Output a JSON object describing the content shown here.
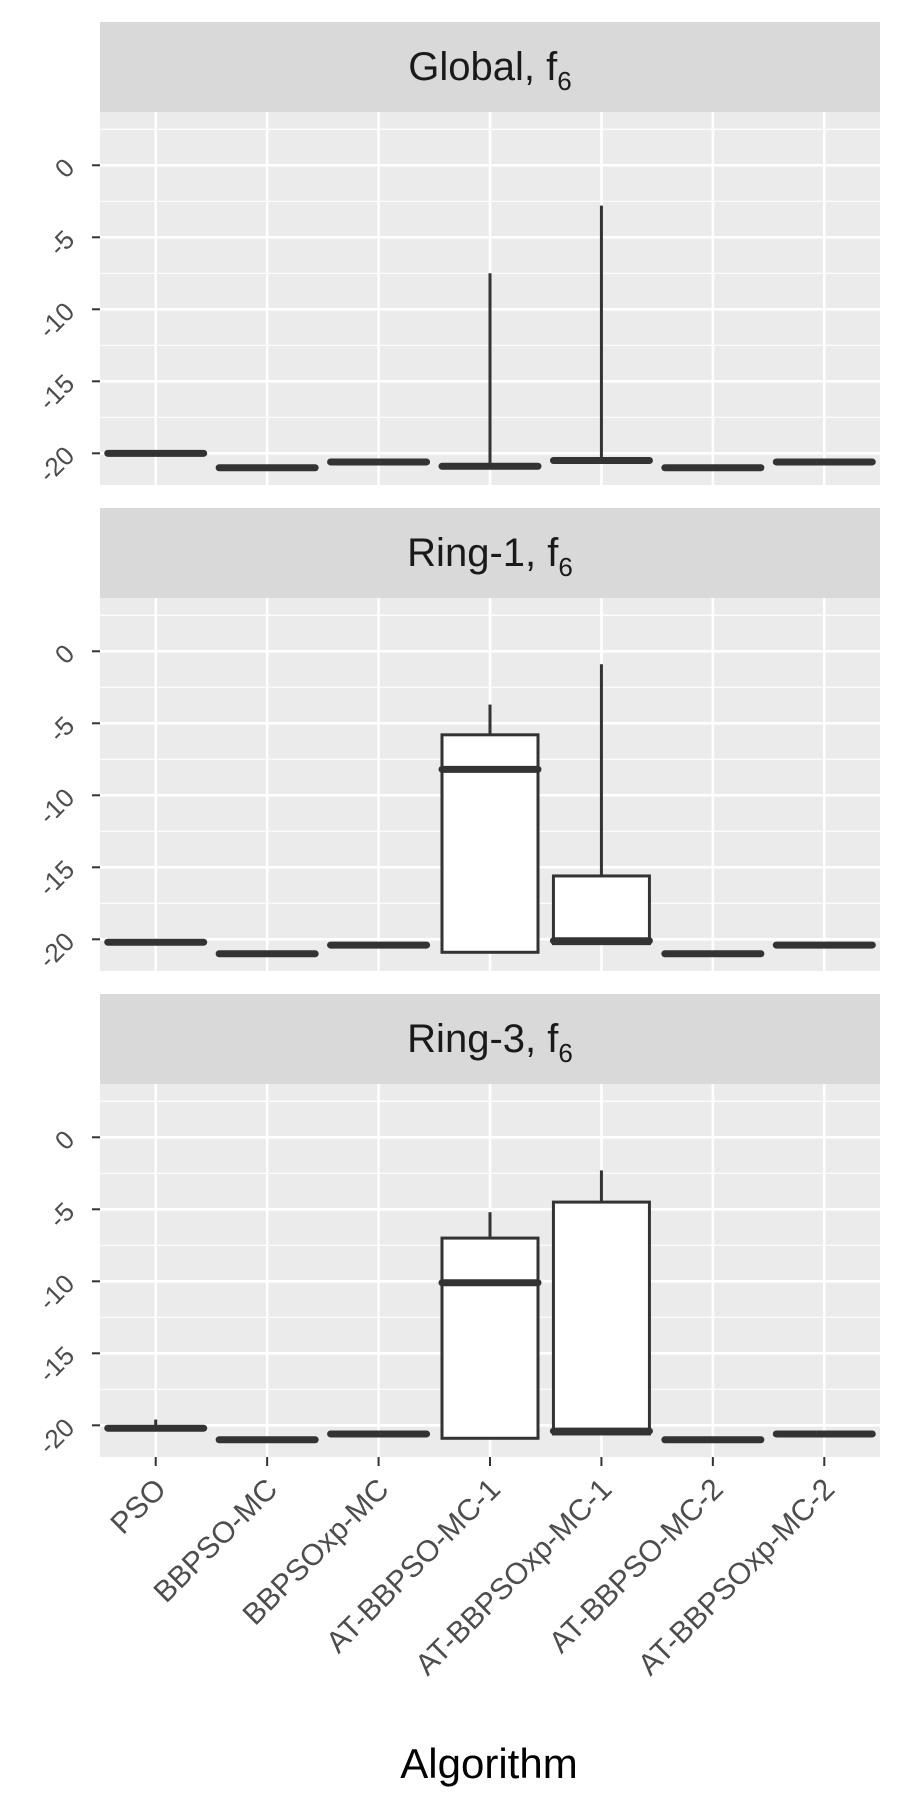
{
  "chart_data": {
    "type": "boxplot",
    "xlabel": "Algorithm",
    "ylabel": "",
    "ylim": [
      -22.2,
      3.7
    ],
    "yticks": [
      0,
      -5,
      -10,
      -15,
      -20
    ],
    "grid": true,
    "categories": [
      "PSO",
      "BBPSO-MC",
      "BBPSOxp-MC",
      "AT-BBPSO-MC-1",
      "AT-BBPSOxp-MC-1",
      "AT-BBPSO-MC-2",
      "AT-BBPSOxp-MC-2"
    ],
    "panels": [
      {
        "title": "Global, f",
        "title_sub": "6",
        "boxes": [
          {
            "min": -20.0,
            "q1": -20.0,
            "median": -20.0,
            "q3": -20.0,
            "max": -20.0
          },
          {
            "min": -21.0,
            "q1": -21.0,
            "median": -21.0,
            "q3": -21.0,
            "max": -21.0
          },
          {
            "min": -20.6,
            "q1": -20.6,
            "median": -20.6,
            "q3": -20.6,
            "max": -20.6
          },
          {
            "min": -20.9,
            "q1": -20.9,
            "median": -20.9,
            "q3": -20.9,
            "max": -7.5
          },
          {
            "min": -20.5,
            "q1": -20.5,
            "median": -20.5,
            "q3": -20.5,
            "max": -2.8
          },
          {
            "min": -21.0,
            "q1": -21.0,
            "median": -21.0,
            "q3": -21.0,
            "max": -21.0
          },
          {
            "min": -20.6,
            "q1": -20.6,
            "median": -20.6,
            "q3": -20.6,
            "max": -20.6
          }
        ]
      },
      {
        "title": "Ring-1, f",
        "title_sub": "6",
        "boxes": [
          {
            "min": -20.2,
            "q1": -20.2,
            "median": -20.2,
            "q3": -20.2,
            "max": -20.2
          },
          {
            "min": -21.0,
            "q1": -21.0,
            "median": -21.0,
            "q3": -21.0,
            "max": -21.0
          },
          {
            "min": -20.4,
            "q1": -20.4,
            "median": -20.4,
            "q3": -20.4,
            "max": -20.4
          },
          {
            "min": -20.9,
            "q1": -20.9,
            "median": -8.2,
            "q3": -5.8,
            "max": -3.7
          },
          {
            "min": -20.3,
            "q1": -20.3,
            "median": -20.1,
            "q3": -15.6,
            "max": -0.9
          },
          {
            "min": -21.0,
            "q1": -21.0,
            "median": -21.0,
            "q3": -21.0,
            "max": -21.0
          },
          {
            "min": -20.4,
            "q1": -20.4,
            "median": -20.4,
            "q3": -20.4,
            "max": -20.4
          }
        ]
      },
      {
        "title": "Ring-3, f",
        "title_sub": "6",
        "boxes": [
          {
            "min": -20.2,
            "q1": -20.2,
            "median": -20.2,
            "q3": -20.2,
            "max": -19.6
          },
          {
            "min": -21.0,
            "q1": -21.0,
            "median": -21.0,
            "q3": -21.0,
            "max": -21.0
          },
          {
            "min": -20.6,
            "q1": -20.6,
            "median": -20.6,
            "q3": -20.6,
            "max": -20.6
          },
          {
            "min": -20.9,
            "q1": -20.9,
            "median": -10.1,
            "q3": -7.0,
            "max": -5.2
          },
          {
            "min": -20.6,
            "q1": -20.6,
            "median": -20.4,
            "q3": -4.5,
            "max": -2.3
          },
          {
            "min": -21.0,
            "q1": -21.0,
            "median": -21.0,
            "q3": -21.0,
            "max": -21.0
          },
          {
            "min": -20.6,
            "q1": -20.6,
            "median": -20.6,
            "q3": -20.6,
            "max": -20.6
          }
        ]
      }
    ]
  }
}
